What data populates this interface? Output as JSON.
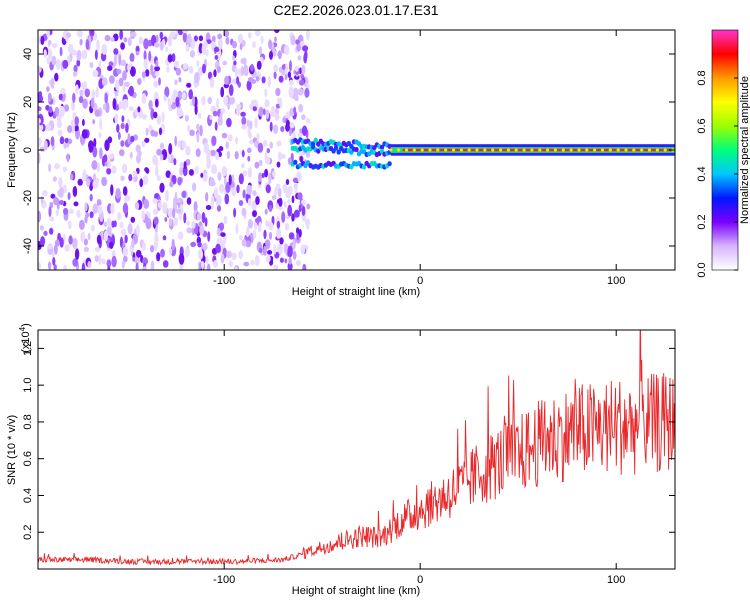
{
  "title": "C2E2.2026.023.01.17.E31",
  "chart_data": [
    {
      "type": "heatmap",
      "xlabel": "Height of straight line (km)",
      "ylabel": "Frequency (Hz)",
      "xlim": [
        -195,
        130
      ],
      "ylim": [
        -50,
        50
      ],
      "x_ticks": [
        -100,
        0,
        100
      ],
      "x_tick_labels": [
        "-100",
        "0",
        "100"
      ],
      "y_ticks": [
        -40,
        -20,
        0,
        20,
        40
      ],
      "y_tick_labels": [
        "-40",
        "-20",
        "0",
        "20",
        "40"
      ],
      "noise_region_x": [
        -195,
        -65
      ],
      "transition_region_x": [
        -65,
        -15
      ],
      "transition_track_freqs": [
        4,
        1,
        -6
      ],
      "stable_region_x": [
        -15,
        130
      ],
      "stable_frequency": 0,
      "colorbar": {
        "label": "Normalized spectral amplitude",
        "range": [
          0,
          1
        ],
        "ticks": [
          0.0,
          0.2,
          0.4,
          0.6,
          0.8
        ],
        "tick_labels": [
          "0.0",
          "0.2",
          "0.4",
          "0.6",
          "0.8"
        ],
        "colors": [
          "#ffffff",
          "#d7b4ff",
          "#7a00ff",
          "#0018ff",
          "#00c8ff",
          "#00ff7a",
          "#9cff00",
          "#ffff00",
          "#ff9a00",
          "#ff0000",
          "#ff33cc"
        ]
      },
      "grid": false
    },
    {
      "type": "line",
      "xlabel": "Height of straight line (km)",
      "ylabel": "SNR (10 * v/v)",
      "multiplier_label": "(x10",
      "multiplier_exp": "4",
      "multiplier_close": ")",
      "xlim": [
        -195,
        130
      ],
      "ylim": [
        0,
        1.3
      ],
      "x_ticks": [
        -100,
        0,
        100
      ],
      "x_tick_labels": [
        "-100",
        "0",
        "100"
      ],
      "y_ticks": [
        0.2,
        0.4,
        0.6,
        0.8,
        1.0,
        1.2
      ],
      "y_tick_labels": [
        "0.2",
        "0.4",
        "0.6",
        "0.8",
        "1.0",
        "1.2"
      ],
      "line_color": "#e8282a",
      "series": [
        {
          "x": [
            -195,
            -170,
            -145,
            -120,
            -95,
            -70,
            -60,
            -50,
            -40,
            -30,
            -20,
            -10,
            0,
            10,
            20,
            30,
            40,
            50,
            60,
            70,
            80,
            90,
            100,
            110,
            120,
            130
          ],
          "y": [
            0.05,
            0.05,
            0.04,
            0.04,
            0.04,
            0.05,
            0.08,
            0.12,
            0.15,
            0.18,
            0.17,
            0.26,
            0.32,
            0.38,
            0.44,
            0.52,
            0.58,
            0.62,
            0.68,
            0.72,
            0.75,
            0.76,
            0.78,
            0.78,
            0.79,
            0.8
          ]
        }
      ],
      "grid": false
    }
  ]
}
